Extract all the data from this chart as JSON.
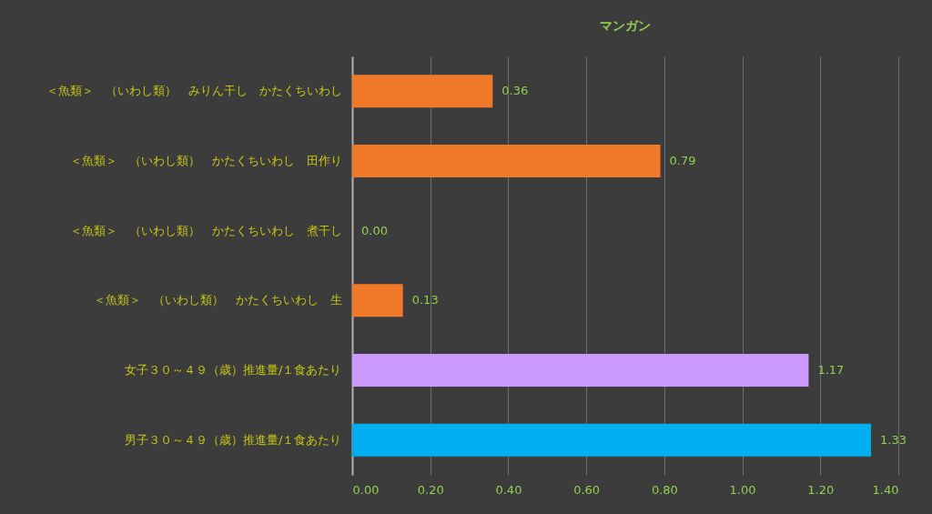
{
  "chart_data": {
    "type": "bar",
    "orientation": "horizontal",
    "title": "マンガン",
    "categories": [
      "＜魚類＞　（いわし類）　みりん干し　かたくちいわし",
      "＜魚類＞　（いわし類）　かたくちいわし　田作り",
      "＜魚類＞　（いわし類）　かたくちいわし　煮干し",
      "＜魚類＞　（いわし類）　かたくちいわし　生",
      "女子３０～４９（歳）推進量/１食あたり",
      "男子３０～４９（歳）推進量/１食あたり"
    ],
    "values": [
      0.36,
      0.79,
      0.0,
      0.13,
      1.17,
      1.33
    ],
    "value_labels": [
      "0.36",
      "0.79",
      "0.00",
      "0.13",
      "1.17",
      "1.33"
    ],
    "colors": [
      "#f07a2a",
      "#f07a2a",
      "#f07a2a",
      "#f07a2a",
      "#cc99ff",
      "#00b0f0"
    ],
    "xlim": [
      0,
      1.4
    ],
    "xticks": [
      {
        "value": 0,
        "label": "0.00"
      },
      {
        "value": 0.2,
        "label": "0.20"
      },
      {
        "value": 0.4,
        "label": "0.40"
      },
      {
        "value": 0.6,
        "label": "0.60"
      },
      {
        "value": 0.8,
        "label": "0.80"
      },
      {
        "value": 1.0,
        "label": "1.00"
      },
      {
        "value": 1.2,
        "label": "1.20"
      },
      {
        "value": 1.4,
        "label": "1.40"
      }
    ],
    "grid": "x"
  }
}
